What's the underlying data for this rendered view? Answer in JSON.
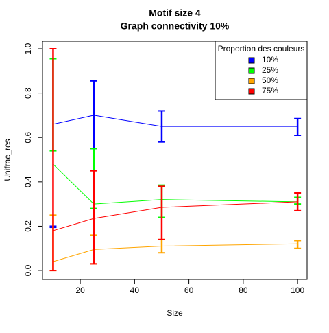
{
  "chart_data": {
    "type": "line",
    "title": "Motif size 4",
    "subtitle": "Graph connectivity 10%",
    "x_label": "Size",
    "y_label": "Unifrac_res",
    "x": [
      10,
      25,
      50,
      100
    ],
    "xlim": [
      6.1,
      103.5
    ],
    "xticks": [
      20,
      40,
      60,
      80,
      100
    ],
    "ylim": [
      -0.04,
      1.034
    ],
    "yticks": [
      {
        "value": 0,
        "label": "0.0"
      },
      0.2,
      0.4,
      0.6,
      0.8,
      {
        "value": 1,
        "label": "1.0"
      }
    ],
    "legend_title": "Proportion des couleurs",
    "legend_position": "top-right",
    "series": [
      {
        "name": "10%",
        "color": "#0000ff",
        "values": [
          0.66,
          0.7,
          0.65,
          0.65
        ],
        "lows": [
          0.195,
          0.55,
          0.58,
          0.61
        ],
        "highs": [
          0.2,
          0.855,
          0.72,
          0.685
        ]
      },
      {
        "name": "25%",
        "color": "#00ff00",
        "values": [
          0.48,
          0.3,
          0.32,
          0.31
        ],
        "lows": [
          0.54,
          0.28,
          0.24,
          0.3
        ],
        "highs": [
          0.955,
          0.55,
          0.385,
          0.33
        ]
      },
      {
        "name": "50%",
        "color": "#ffa500",
        "values": [
          0.04,
          0.095,
          0.11,
          0.12
        ],
        "lows": [
          0.0,
          0.03,
          0.08,
          0.1
        ],
        "highs": [
          0.25,
          0.16,
          0.14,
          0.135
        ]
      },
      {
        "name": "75%",
        "color": "#ff0000",
        "values": [
          0.18,
          0.235,
          0.285,
          0.31
        ],
        "lows": [
          0.0,
          0.03,
          0.14,
          0.27
        ],
        "highs": [
          1.0,
          0.45,
          0.38,
          0.35
        ]
      }
    ]
  }
}
